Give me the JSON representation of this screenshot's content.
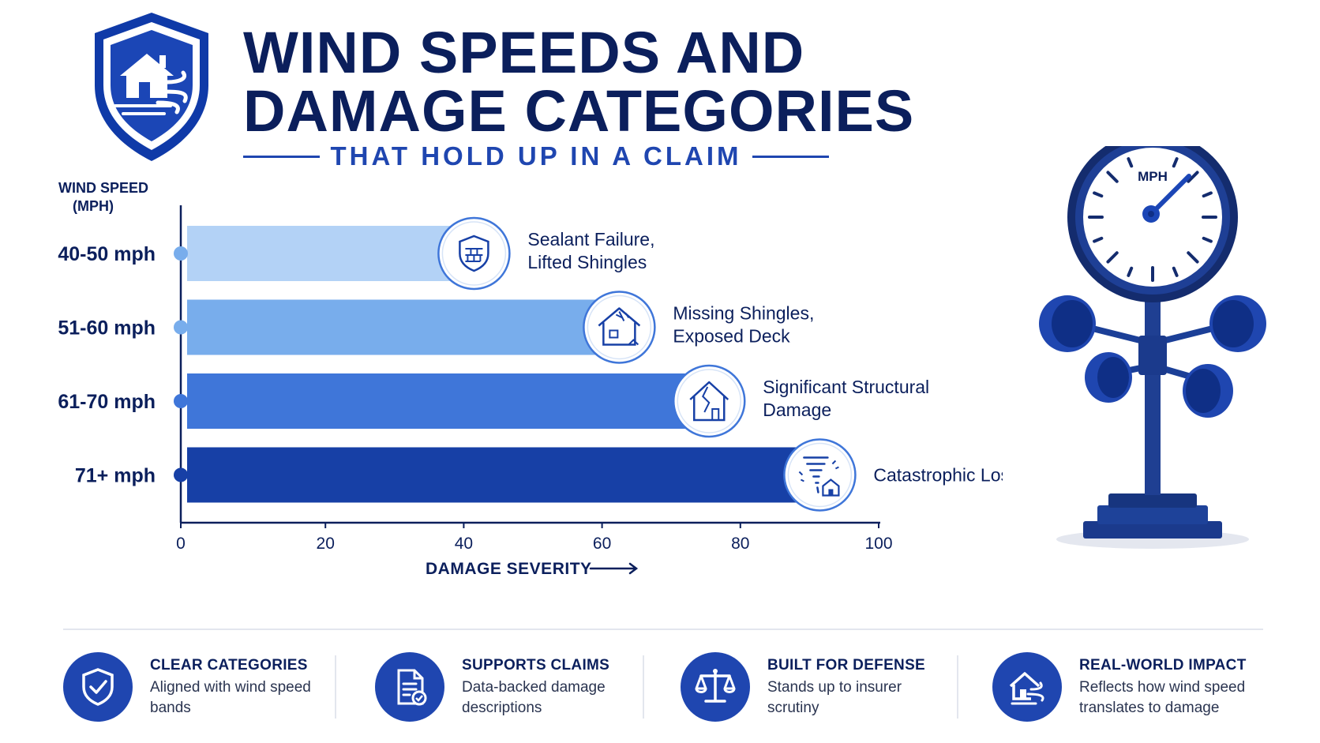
{
  "header": {
    "title_line1": "WIND SPEEDS AND",
    "title_line2": "DAMAGE CATEGORIES",
    "subtitle": "THAT HOLD UP IN A CLAIM"
  },
  "chart_data": {
    "type": "bar",
    "orientation": "horizontal",
    "ylabel_line1": "WIND SPEED",
    "ylabel_line2": "(MPH)",
    "xlabel": "DAMAGE SEVERITY",
    "xlim": [
      0,
      100
    ],
    "xticks": [
      0,
      20,
      40,
      60,
      80,
      100
    ],
    "categories": [
      "40-50 mph",
      "51-60 mph",
      "61-70 mph",
      "71+ mph"
    ],
    "values": [
      40,
      61,
      74,
      90
    ],
    "bar_colors": [
      "#b3d2f6",
      "#78adec",
      "#3f76d9",
      "#1740a6"
    ],
    "annotations": [
      {
        "line1": "Sealant Failure,",
        "line2": "Lifted Shingles",
        "icon": "shield-bricks-icon"
      },
      {
        "line1": "Missing Shingles,",
        "line2": "Exposed Deck",
        "icon": "damaged-roof-icon"
      },
      {
        "line1": "Significant Structural",
        "line2": "Damage",
        "icon": "cracked-house-icon"
      },
      {
        "line1": "Catastrophic Loss",
        "line2": "",
        "icon": "tornado-house-icon"
      }
    ],
    "grid": false
  },
  "gauge": {
    "label": "MPH",
    "icon": "anemometer-icon"
  },
  "features": [
    {
      "title": "CLEAR CATEGORIES",
      "desc": "Aligned with wind speed bands",
      "icon": "shield-check-icon"
    },
    {
      "title": "SUPPORTS CLAIMS",
      "desc": "Data-backed damage descriptions",
      "icon": "document-check-icon"
    },
    {
      "title": "BUILT FOR DEFENSE",
      "desc": "Stands up to insurer scrutiny",
      "icon": "scales-icon"
    },
    {
      "title": "REAL-WORLD IMPACT",
      "desc": "Reflects how wind speed translates to damage",
      "icon": "house-wind-icon"
    }
  ],
  "colors": {
    "navy": "#0b1f5c",
    "accent": "#1f46b0"
  }
}
